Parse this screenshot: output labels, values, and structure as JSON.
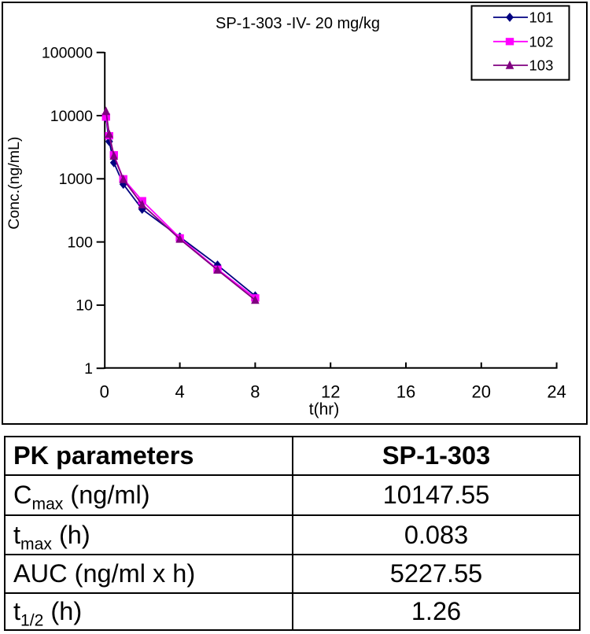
{
  "chart_data": {
    "type": "line",
    "title": "SP-1-303 -IV- 20 mg/kg",
    "xlabel": "t(hr)",
    "ylabel": "Conc.(ng/mL)",
    "x_scale": "linear",
    "y_scale": "log",
    "xlim": [
      0,
      24
    ],
    "ylim": [
      1,
      100000
    ],
    "x_ticks": [
      0,
      4,
      8,
      12,
      16,
      20,
      24
    ],
    "y_ticks": [
      1,
      10,
      100,
      1000,
      10000,
      100000
    ],
    "grid": false,
    "legend_position": "top-right",
    "x": [
      0.083,
      0.25,
      0.5,
      1,
      2,
      4,
      6,
      8
    ],
    "series": [
      {
        "name": "101",
        "color": "#000080",
        "marker": "diamond",
        "values": [
          9250,
          3900,
          1800,
          820,
          330,
          120,
          43,
          14
        ]
      },
      {
        "name": "102",
        "color": "#ff00ff",
        "marker": "square",
        "values": [
          9500,
          4800,
          2400,
          1000,
          450,
          116,
          37,
          13
        ]
      },
      {
        "name": "103",
        "color": "#800080",
        "marker": "triangle",
        "values": [
          11700,
          5100,
          2300,
          980,
          390,
          111,
          36,
          12
        ]
      }
    ]
  },
  "table": {
    "header": {
      "param_label": "PK parameters",
      "value_label": "SP-1-303"
    },
    "rows": [
      {
        "pre": "C",
        "sub": "max",
        "post": " (ng/ml)",
        "value": "10147.55"
      },
      {
        "pre": "t",
        "sub": "max",
        "post": " (h)",
        "value": "0.083"
      },
      {
        "pre": "AUC (ng/ml x h)",
        "sub": "",
        "post": "",
        "value": "5227.55"
      },
      {
        "pre": "t",
        "sub": "1/2",
        "post": " (h)",
        "value": "1.26"
      }
    ]
  }
}
